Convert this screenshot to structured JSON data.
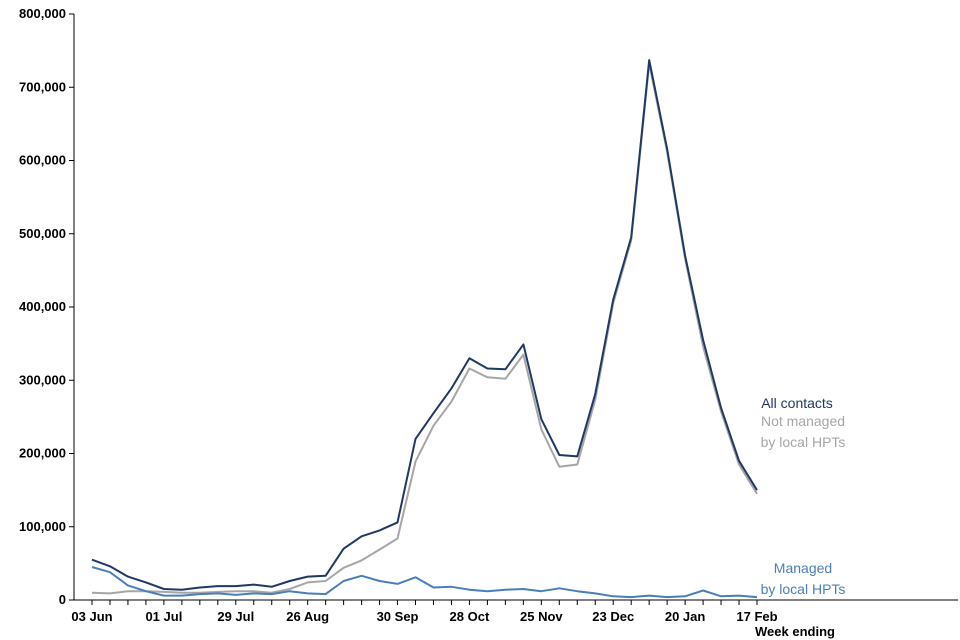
{
  "chart_data": {
    "type": "line",
    "xlabel": "Week ending",
    "ylabel": "",
    "ylim": [
      0,
      800000
    ],
    "yticks": [
      0,
      100000,
      200000,
      300000,
      400000,
      500000,
      600000,
      700000,
      800000
    ],
    "ytick_labels": [
      "0",
      "100,000",
      "200,000",
      "300,000",
      "400,000",
      "500,000",
      "600,000",
      "700,000",
      "800,000"
    ],
    "x": [
      "03 Jun",
      "10 Jun",
      "17 Jun",
      "24 Jun",
      "01 Jul",
      "08 Jul",
      "15 Jul",
      "22 Jul",
      "29 Jul",
      "05 Aug",
      "12 Aug",
      "19 Aug",
      "26 Aug",
      "02 Sep",
      "09 Sep",
      "16 Sep",
      "23 Sep",
      "30 Sep",
      "07 Oct",
      "14 Oct",
      "21 Oct",
      "28 Oct",
      "04 Nov",
      "11 Nov",
      "18 Nov",
      "25 Nov",
      "02 Dec",
      "09 Dec",
      "16 Dec",
      "23 Dec",
      "30 Dec",
      "06 Jan",
      "13 Jan",
      "20 Jan",
      "27 Jan",
      "03 Feb",
      "10 Feb",
      "17 Feb"
    ],
    "xtick_labels": [
      "03 Jun",
      "01 Jul",
      "29 Jul",
      "26 Aug",
      "30 Sep",
      "28 Oct",
      "25 Nov",
      "23 Dec",
      "20 Jan",
      "17 Feb"
    ],
    "grid": false,
    "legend": "inline labels at right",
    "series": [
      {
        "name": "All contacts",
        "color": "#1f3864",
        "values": [
          55000,
          46000,
          32000,
          24000,
          15000,
          14000,
          17000,
          19000,
          19000,
          21000,
          18000,
          26000,
          32000,
          33000,
          70000,
          87000,
          95000,
          106000,
          220000,
          255000,
          289000,
          330000,
          316000,
          315000,
          349000,
          247000,
          198000,
          196000,
          281000,
          410000,
          495000,
          737000,
          616000,
          470000,
          355000,
          262000,
          190000,
          150000
        ]
      },
      {
        "name": "Not managed by local HPTs",
        "color": "#a6a6a6",
        "values": [
          10000,
          9000,
          12000,
          12000,
          11000,
          10000,
          10000,
          11000,
          12000,
          12000,
          10000,
          15000,
          24000,
          26000,
          44000,
          54000,
          69000,
          84000,
          189000,
          238000,
          271000,
          316000,
          304000,
          302000,
          335000,
          233000,
          182000,
          185000,
          273000,
          405000,
          491000,
          732000,
          612000,
          466000,
          346000,
          257000,
          185000,
          145000
        ]
      },
      {
        "name": "Managed by local HPTs",
        "color": "#4a7ebb",
        "values": [
          45000,
          38000,
          20000,
          12000,
          6000,
          6000,
          8000,
          9000,
          7000,
          9000,
          8000,
          12000,
          9000,
          8000,
          26000,
          33000,
          26000,
          22000,
          31000,
          17000,
          18000,
          14000,
          12000,
          14000,
          15000,
          12000,
          16000,
          12000,
          9000,
          5000,
          4000,
          6000,
          4000,
          5000,
          13000,
          5000,
          6000,
          4000
        ]
      }
    ],
    "series_labels": [
      {
        "lines": [
          "All contacts"
        ],
        "color": "#1f3864"
      },
      {
        "lines": [
          "Not managed",
          "by local HPTs"
        ],
        "color": "#a6a6a6"
      },
      {
        "lines": [
          "Managed",
          "by local HPTs"
        ],
        "color": "#4a7ebb"
      }
    ]
  }
}
